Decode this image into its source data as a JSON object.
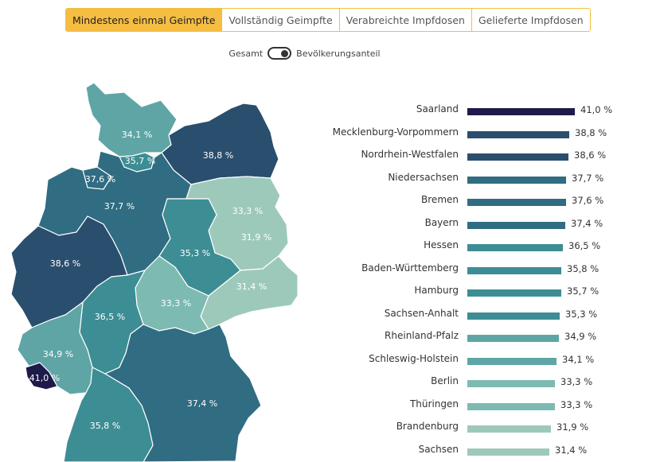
{
  "tabs": [
    {
      "label": "Mindestens einmal Geimpfte",
      "active": true
    },
    {
      "label": "Vollständig Geimpfte",
      "active": false
    },
    {
      "label": "Verabreichte Impfdosen",
      "active": false
    },
    {
      "label": "Gelieferte Impfdosen",
      "active": false
    }
  ],
  "toggle": {
    "left_label": "Gesamt",
    "right_label": "Bevölkerungsanteil",
    "state": "Bevölkerungsanteil"
  },
  "colors": {
    "accent": "#f5bd42",
    "scale": [
      "#9dc9bb",
      "#7dbab2",
      "#5fa5a6",
      "#3d8d94",
      "#306c82",
      "#2a4e6e",
      "#1e1a4a"
    ]
  },
  "map": {
    "labels": {
      "schleswig_holstein": "34,1 %",
      "hamburg": "35,7 %",
      "mecklenburg_vorpommern": "38,8 %",
      "bremen": "37,6 %",
      "niedersachsen": "37,7 %",
      "berlin": "33,3 %",
      "brandenburg": "31,9 %",
      "sachsen_anhalt": "35,3 %",
      "nordrhein_westfalen": "38,6 %",
      "sachsen": "31,4 %",
      "thueringen": "33,3 %",
      "hessen": "36,5 %",
      "rheinland_pfalz": "34,9 %",
      "saarland": "41,0 %",
      "bayern": "37,4 %",
      "baden_wuerttemberg": "35,8 %"
    }
  },
  "chart_data": {
    "type": "bar",
    "orientation": "horizontal",
    "categories": [
      "Saarland",
      "Mecklenburg-Vorpommern",
      "Nordrhein-Westfalen",
      "Niedersachsen",
      "Bremen",
      "Bayern",
      "Hessen",
      "Baden-Württemberg",
      "Hamburg",
      "Sachsen-Anhalt",
      "Rheinland-Pfalz",
      "Schleswig-Holstein",
      "Berlin",
      "Thüringen",
      "Brandenburg",
      "Sachsen"
    ],
    "values": [
      41.0,
      38.8,
      38.6,
      37.7,
      37.6,
      37.4,
      36.5,
      35.8,
      35.7,
      35.3,
      34.9,
      34.1,
      33.3,
      33.3,
      31.9,
      31.4
    ],
    "value_labels": [
      "41,0 %",
      "38,8 %",
      "38,6 %",
      "37,7 %",
      "37,6 %",
      "37,4 %",
      "36,5 %",
      "35,8 %",
      "35,7 %",
      "35,3 %",
      "34,9 %",
      "34,1 %",
      "33,3 %",
      "33,3 %",
      "31,9 %",
      "31,4 %"
    ],
    "bar_colors": [
      "#1e1a4a",
      "#2a4e6e",
      "#2a4e6e",
      "#306c82",
      "#306c82",
      "#306c82",
      "#3d8d94",
      "#3d8d94",
      "#3d8d94",
      "#3d8d94",
      "#5fa5a6",
      "#5fa5a6",
      "#7dbab2",
      "#7dbab2",
      "#9dc9bb",
      "#9dc9bb"
    ],
    "xlim": [
      0,
      41.0
    ],
    "grid": false
  }
}
